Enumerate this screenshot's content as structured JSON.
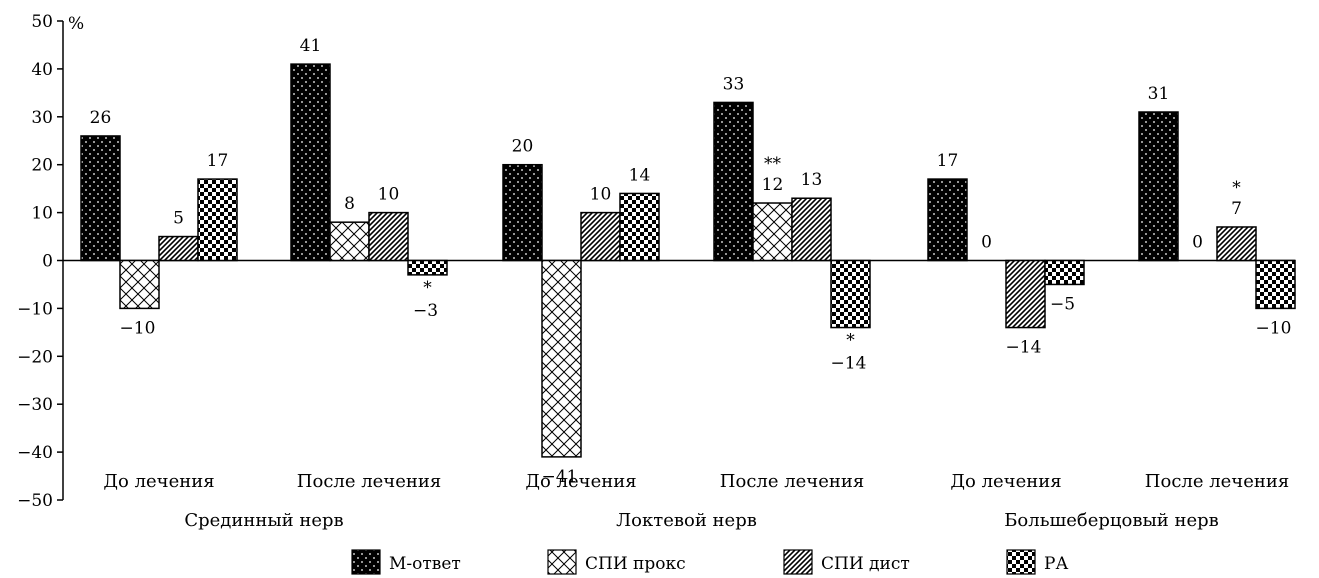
{
  "chart_data": {
    "type": "bar",
    "y_unit": "%",
    "ylim": [
      -50,
      50
    ],
    "y_ticks": [
      50,
      40,
      30,
      20,
      10,
      0,
      -10,
      -20,
      -30,
      -40,
      -50
    ],
    "grid": false,
    "legend_position": "bottom",
    "groups": [
      {
        "label": "Срединный нерв",
        "categories": [
          "До лечения",
          "После лечения"
        ]
      },
      {
        "label": "Локтевой нерв",
        "categories": [
          "До лечения",
          "После лечения"
        ]
      },
      {
        "label": "Большеберцовый нерв",
        "categories": [
          "До лечения",
          "После лечения"
        ]
      }
    ],
    "categories": [
      "До лечения",
      "После лечения",
      "До лечения",
      "После лечения",
      "До лечения",
      "После лечения"
    ],
    "series": [
      {
        "name": "М-ответ",
        "pattern": "dots",
        "values": [
          26,
          41,
          20,
          33,
          17,
          31
        ],
        "labels": [
          "26",
          "41",
          "20",
          "33",
          "17",
          "31"
        ],
        "marks": [
          "",
          "",
          "",
          "",
          "",
          ""
        ]
      },
      {
        "name": "СПИ прокс",
        "pattern": "crosshatch",
        "values": [
          -10,
          8,
          -41,
          12,
          0,
          0
        ],
        "labels": [
          "−10",
          "8",
          "−41",
          "12",
          "0",
          "0"
        ],
        "marks": [
          "",
          "",
          "",
          "**",
          "",
          ""
        ]
      },
      {
        "name": "СПИ дист",
        "pattern": "diagonal",
        "values": [
          5,
          10,
          10,
          13,
          -14,
          7
        ],
        "labels": [
          "5",
          "10",
          "10",
          "13",
          "−14",
          "7"
        ],
        "marks": [
          "",
          "",
          "",
          "",
          "",
          "*"
        ]
      },
      {
        "name": "РА",
        "pattern": "checker",
        "values": [
          17,
          -3,
          14,
          -14,
          -5,
          -10
        ],
        "labels": [
          "17",
          "−3",
          "14",
          "−14",
          "−5",
          "−10"
        ],
        "marks": [
          "",
          "*",
          "",
          "*",
          "",
          ""
        ]
      }
    ]
  },
  "colors": {
    "bar_fill": "#000000",
    "bar_stroke": "#000000",
    "background": "#ffffff"
  }
}
